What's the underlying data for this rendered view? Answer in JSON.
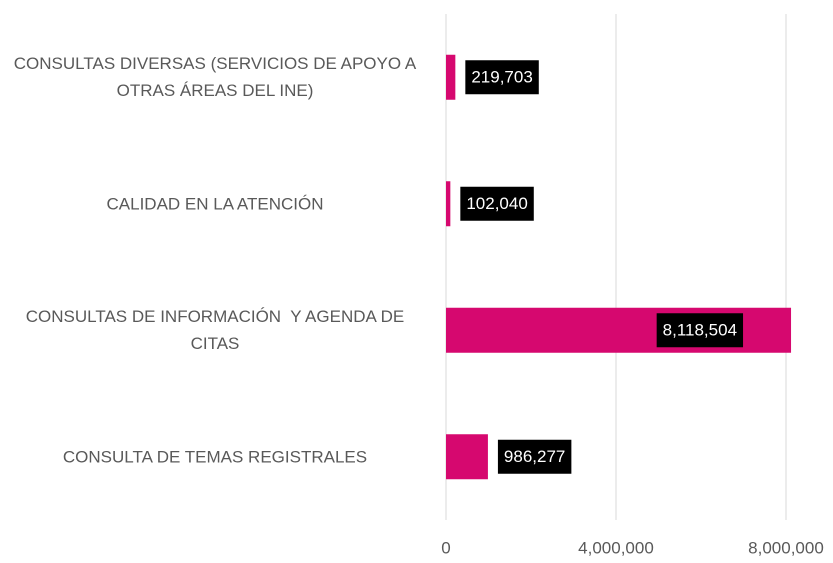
{
  "chart_data": {
    "type": "bar",
    "orientation": "horizontal",
    "categories": [
      "CONSULTAS DIVERSAS (SERVICIOS DE APOYO A OTRAS ÁREAS DEL INE)",
      "CALIDAD EN LA ATENCIÓN",
      "CONSULTAS DE INFORMACIÓN  Y AGENDA DE CITAS",
      "CONSULTA DE TEMAS REGISTRALES"
    ],
    "values": [
      219703,
      102040,
      8118504,
      986277
    ],
    "value_labels": [
      "219,703",
      "102,040",
      "8,118,504",
      "986,277"
    ],
    "color": "#d6086f",
    "xlim": [
      0,
      8000000
    ],
    "xticks": [
      0,
      {
        "value": 4000000,
        "label": "4,000,000"
      },
      {
        "value": 8000000,
        "label": "8,000,000"
      }
    ],
    "grid": true
  }
}
